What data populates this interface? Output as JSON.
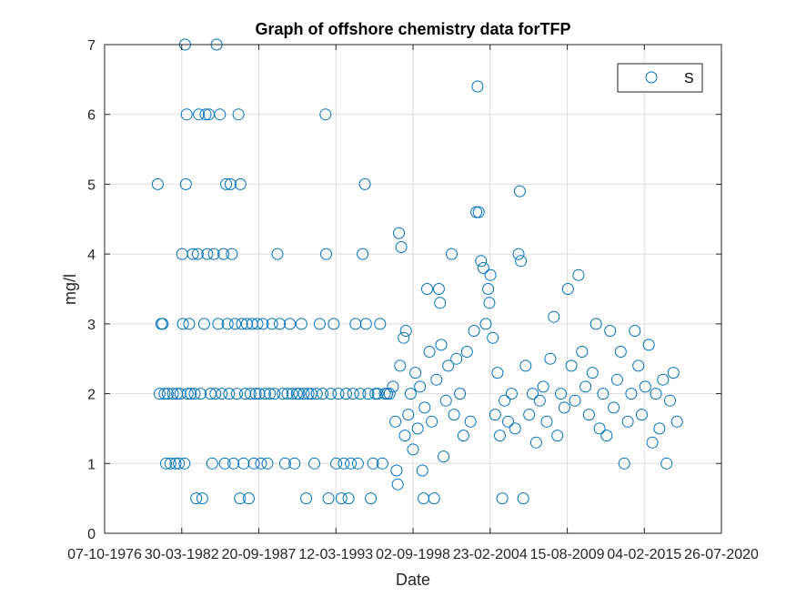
{
  "chart_data": {
    "type": "scatter",
    "title": "Graph of offshore chemistry data forTFP",
    "xlabel": "Date",
    "ylabel": "mg/l",
    "x_tick_labels": [
      "07-10-1976",
      "30-03-1982",
      "20-09-1987",
      "12-03-1993",
      "02-09-1998",
      "23-02-2004",
      "15-08-2009",
      "04-02-2015",
      "26-07-2020"
    ],
    "xlim": [
      "07-10-1976",
      "26-07-2020"
    ],
    "y_ticks": [
      0,
      1,
      2,
      3,
      4,
      5,
      6,
      7
    ],
    "ylim": [
      0,
      7
    ],
    "grid": true,
    "legend_position": "top-right",
    "marker": "open-circle",
    "series": [
      {
        "name": "S",
        "color": "#0072BD",
        "points": [
          [
            "1980-07-15",
            5
          ],
          [
            "1980-09-01",
            2
          ],
          [
            "1980-10-15",
            3
          ],
          [
            "1980-11-20",
            3
          ],
          [
            "1981-01-10",
            2
          ],
          [
            "1981-02-15",
            1
          ],
          [
            "1981-04-01",
            2
          ],
          [
            "1981-06-10",
            1
          ],
          [
            "1981-08-15",
            2
          ],
          [
            "1981-10-20",
            1
          ],
          [
            "1981-12-01",
            2
          ],
          [
            "1982-01-15",
            1
          ],
          [
            "1982-02-20",
            2
          ],
          [
            "1982-04-10",
            4
          ],
          [
            "1982-05-01",
            3
          ],
          [
            "1982-06-10",
            1
          ],
          [
            "1982-06-25",
            7
          ],
          [
            "1982-07-15",
            5
          ],
          [
            "1982-08-05",
            6
          ],
          [
            "1982-09-01",
            2
          ],
          [
            "1982-10-10",
            3
          ],
          [
            "1982-11-20",
            2
          ],
          [
            "1983-01-15",
            4
          ],
          [
            "1983-03-01",
            2
          ],
          [
            "1983-04-10",
            0.5
          ],
          [
            "1983-05-20",
            4
          ],
          [
            "1983-06-15",
            6
          ],
          [
            "1983-08-01",
            2
          ],
          [
            "1983-09-15",
            0.5
          ],
          [
            "1983-11-01",
            3
          ],
          [
            "1983-12-10",
            6
          ],
          [
            "1984-01-20",
            4
          ],
          [
            "1984-03-01",
            6
          ],
          [
            "1984-04-15",
            2
          ],
          [
            "1984-05-30",
            1
          ],
          [
            "1984-07-10",
            4
          ],
          [
            "1984-08-20",
            2
          ],
          [
            "1984-09-20",
            7
          ],
          [
            "1984-11-01",
            3
          ],
          [
            "1984-12-15",
            6
          ],
          [
            "1985-02-01",
            2
          ],
          [
            "1985-03-15",
            4
          ],
          [
            "1985-04-20",
            1
          ],
          [
            "1985-05-25",
            5
          ],
          [
            "1985-07-01",
            3
          ],
          [
            "1985-08-10",
            2
          ],
          [
            "1985-09-15",
            5
          ],
          [
            "1985-10-20",
            4
          ],
          [
            "1985-12-01",
            1
          ],
          [
            "1986-01-15",
            3
          ],
          [
            "1986-03-01",
            2
          ],
          [
            "1986-04-10",
            6
          ],
          [
            "1986-05-20",
            0.5
          ],
          [
            "1986-06-01",
            5
          ],
          [
            "1986-07-10",
            3
          ],
          [
            "1986-08-20",
            1
          ],
          [
            "1986-10-01",
            2
          ],
          [
            "1986-11-15",
            3
          ],
          [
            "1987-01-01",
            0.5
          ],
          [
            "1987-02-15",
            2
          ],
          [
            "1987-04-01",
            3
          ],
          [
            "1987-05-15",
            1
          ],
          [
            "1987-07-01",
            2
          ],
          [
            "1987-08-15",
            3
          ],
          [
            "1987-10-01",
            2
          ],
          [
            "1987-11-15",
            1
          ],
          [
            "1988-01-01",
            3
          ],
          [
            "1988-03-01",
            2
          ],
          [
            "1988-05-01",
            1
          ],
          [
            "1988-07-01",
            2
          ],
          [
            "1988-09-01",
            3
          ],
          [
            "1988-11-01",
            2
          ],
          [
            "1989-01-15",
            4
          ],
          [
            "1989-03-15",
            3
          ],
          [
            "1989-06-01",
            2
          ],
          [
            "1989-08-01",
            1
          ],
          [
            "1989-10-01",
            2
          ],
          [
            "1989-12-01",
            3
          ],
          [
            "1990-02-01",
            2
          ],
          [
            "1990-04-01",
            1
          ],
          [
            "1990-06-01",
            2
          ],
          [
            "1990-08-01",
            2
          ],
          [
            "1990-10-01",
            3
          ],
          [
            "1990-12-01",
            2
          ],
          [
            "1991-02-01",
            0.5
          ],
          [
            "1991-04-01",
            2
          ],
          [
            "1991-06-15",
            2
          ],
          [
            "1991-09-01",
            1
          ],
          [
            "1991-11-01",
            2
          ],
          [
            "1992-01-15",
            3
          ],
          [
            "1992-04-01",
            2
          ],
          [
            "1992-06-15",
            6
          ],
          [
            "1992-07-01",
            4
          ],
          [
            "1992-09-01",
            0.5
          ],
          [
            "1992-11-01",
            2
          ],
          [
            "1993-01-15",
            3
          ],
          [
            "1993-03-20",
            1
          ],
          [
            "1993-05-15",
            2
          ],
          [
            "1993-08-01",
            0.5
          ],
          [
            "1993-10-01",
            1
          ],
          [
            "1993-12-01",
            2
          ],
          [
            "1994-02-01",
            0.5
          ],
          [
            "1994-04-01",
            1
          ],
          [
            "1994-06-01",
            2
          ],
          [
            "1994-08-01",
            3
          ],
          [
            "1994-10-01",
            1
          ],
          [
            "1994-12-01",
            2
          ],
          [
            "1995-02-01",
            4
          ],
          [
            "1995-04-01",
            5
          ],
          [
            "1995-05-01",
            3
          ],
          [
            "1995-07-01",
            2
          ],
          [
            "1995-09-01",
            0.5
          ],
          [
            "1995-11-01",
            1
          ],
          [
            "1996-01-01",
            2
          ],
          [
            "1996-03-01",
            2
          ],
          [
            "1996-05-01",
            3
          ],
          [
            "1996-07-01",
            1
          ],
          [
            "1996-09-01",
            2
          ],
          [
            "1996-11-01",
            2
          ],
          [
            "1997-01-01",
            2
          ],
          [
            "1997-04-01",
            2.1
          ],
          [
            "1997-06-01",
            1.6
          ],
          [
            "1997-07-01",
            0.9
          ],
          [
            "1997-08-01",
            0.7
          ],
          [
            "1997-09-01",
            4.3
          ],
          [
            "1997-10-01",
            2.4
          ],
          [
            "1997-11-01",
            4.1
          ],
          [
            "1998-01-01",
            2.8
          ],
          [
            "1998-02-01",
            1.4
          ],
          [
            "1998-03-01",
            2.9
          ],
          [
            "1998-05-01",
            1.7
          ],
          [
            "1998-07-01",
            2.0
          ],
          [
            "1998-09-01",
            1.2
          ],
          [
            "1998-11-01",
            2.3
          ],
          [
            "1999-01-01",
            1.5
          ],
          [
            "1999-03-01",
            2.1
          ],
          [
            "1999-05-01",
            0.9
          ],
          [
            "1999-06-01",
            0.5
          ],
          [
            "1999-07-01",
            1.8
          ],
          [
            "1999-09-01",
            3.5
          ],
          [
            "1999-11-01",
            2.6
          ],
          [
            "2000-01-01",
            1.6
          ],
          [
            "2000-03-01",
            0.5
          ],
          [
            "2000-05-01",
            2.2
          ],
          [
            "2000-07-01",
            3.5
          ],
          [
            "2000-08-01",
            3.3
          ],
          [
            "2000-09-01",
            2.7
          ],
          [
            "2000-11-01",
            1.1
          ],
          [
            "2001-01-01",
            1.9
          ],
          [
            "2001-03-01",
            2.4
          ],
          [
            "2001-06-01",
            4.0
          ],
          [
            "2001-08-01",
            1.7
          ],
          [
            "2001-10-01",
            2.5
          ],
          [
            "2002-01-01",
            2.0
          ],
          [
            "2002-04-01",
            1.4
          ],
          [
            "2002-07-01",
            2.6
          ],
          [
            "2002-10-01",
            1.6
          ],
          [
            "2003-01-01",
            2.9
          ],
          [
            "2003-03-01",
            4.6
          ],
          [
            "2003-04-01",
            6.4
          ],
          [
            "2003-05-01",
            4.6
          ],
          [
            "2003-07-01",
            3.9
          ],
          [
            "2003-09-01",
            3.8
          ],
          [
            "2003-11-01",
            3.0
          ],
          [
            "2004-01-01",
            3.5
          ],
          [
            "2004-02-01",
            3.3
          ],
          [
            "2004-03-01",
            3.7
          ],
          [
            "2004-05-01",
            2.8
          ],
          [
            "2004-07-01",
            1.7
          ],
          [
            "2004-09-01",
            2.3
          ],
          [
            "2004-11-01",
            1.4
          ],
          [
            "2005-01-01",
            0.5
          ],
          [
            "2005-03-01",
            1.9
          ],
          [
            "2005-06-01",
            1.6
          ],
          [
            "2005-09-01",
            2.0
          ],
          [
            "2005-12-01",
            1.5
          ],
          [
            "2006-03-01",
            4.0
          ],
          [
            "2006-04-01",
            4.9
          ],
          [
            "2006-05-01",
            3.9
          ],
          [
            "2006-07-01",
            0.5
          ],
          [
            "2006-09-01",
            2.4
          ],
          [
            "2006-12-01",
            1.7
          ],
          [
            "2007-03-01",
            2.0
          ],
          [
            "2007-06-01",
            1.3
          ],
          [
            "2007-09-01",
            1.9
          ],
          [
            "2007-12-01",
            2.1
          ],
          [
            "2008-03-01",
            1.6
          ],
          [
            "2008-06-01",
            2.5
          ],
          [
            "2008-09-01",
            3.1
          ],
          [
            "2008-12-01",
            1.4
          ],
          [
            "2009-03-01",
            2.0
          ],
          [
            "2009-06-01",
            1.8
          ],
          [
            "2009-09-01",
            3.5
          ],
          [
            "2009-12-01",
            2.4
          ],
          [
            "2010-03-01",
            1.9
          ],
          [
            "2010-06-01",
            3.7
          ],
          [
            "2010-09-01",
            2.6
          ],
          [
            "2010-12-01",
            2.1
          ],
          [
            "2011-03-01",
            1.7
          ],
          [
            "2011-06-01",
            2.3
          ],
          [
            "2011-09-01",
            3.0
          ],
          [
            "2011-12-01",
            1.5
          ],
          [
            "2012-03-01",
            2.0
          ],
          [
            "2012-06-01",
            1.4
          ],
          [
            "2012-09-01",
            2.9
          ],
          [
            "2012-12-01",
            1.8
          ],
          [
            "2013-03-01",
            2.2
          ],
          [
            "2013-06-01",
            2.6
          ],
          [
            "2013-09-01",
            1.0
          ],
          [
            "2013-12-01",
            1.6
          ],
          [
            "2014-03-01",
            2.0
          ],
          [
            "2014-06-01",
            2.9
          ],
          [
            "2014-09-01",
            2.4
          ],
          [
            "2014-12-01",
            1.7
          ],
          [
            "2015-03-01",
            2.1
          ],
          [
            "2015-06-01",
            2.7
          ],
          [
            "2015-09-01",
            1.3
          ],
          [
            "2015-12-01",
            2.0
          ],
          [
            "2016-03-01",
            1.5
          ],
          [
            "2016-06-01",
            2.2
          ],
          [
            "2016-09-01",
            1.0
          ],
          [
            "2016-12-01",
            1.9
          ],
          [
            "2017-03-01",
            2.3
          ],
          [
            "2017-06-01",
            1.6
          ]
        ]
      }
    ]
  }
}
